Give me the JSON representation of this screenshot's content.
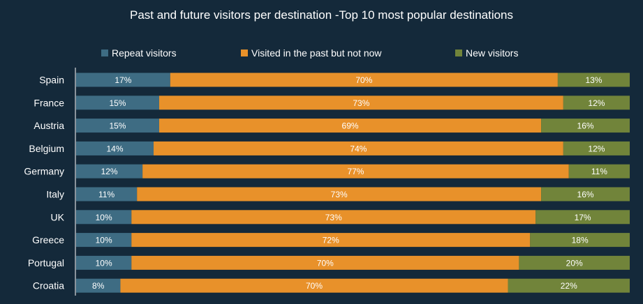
{
  "chart_data": {
    "type": "bar",
    "orientation": "horizontal",
    "stacked": true,
    "title": "Past and future visitors per destination -Top 10 most popular destinations",
    "legend_position": "top",
    "categories": [
      "Spain",
      "France",
      "Austria",
      "Belgium",
      "Germany",
      "Italy",
      "UK",
      "Greece",
      "Portugal",
      "Croatia"
    ],
    "series": [
      {
        "name": "Repeat visitors",
        "color": "#3e6c83",
        "values": [
          17,
          15,
          15,
          14,
          12,
          11,
          10,
          10,
          10,
          8
        ],
        "labels": [
          "17%",
          "15%",
          "15%",
          "14%",
          "12%",
          "11%",
          "10%",
          "10%",
          "10%",
          "8%"
        ]
      },
      {
        "name": "Visited in the past but not now",
        "color": "#e8912a",
        "values": [
          70,
          73,
          69,
          74,
          77,
          73,
          73,
          72,
          70,
          70
        ],
        "labels": [
          "70%",
          "73%",
          "69%",
          "74%",
          "77%",
          "73%",
          "73%",
          "72%",
          "70%",
          "70%"
        ]
      },
      {
        "name": "New visitors",
        "color": "#71843a",
        "values": [
          13,
          12,
          16,
          12,
          11,
          16,
          17,
          18,
          20,
          22
        ],
        "labels": [
          "13%",
          "12%",
          "16%",
          "12%",
          "11%",
          "16%",
          "17%",
          "18%",
          "20%",
          "22%"
        ]
      }
    ]
  }
}
